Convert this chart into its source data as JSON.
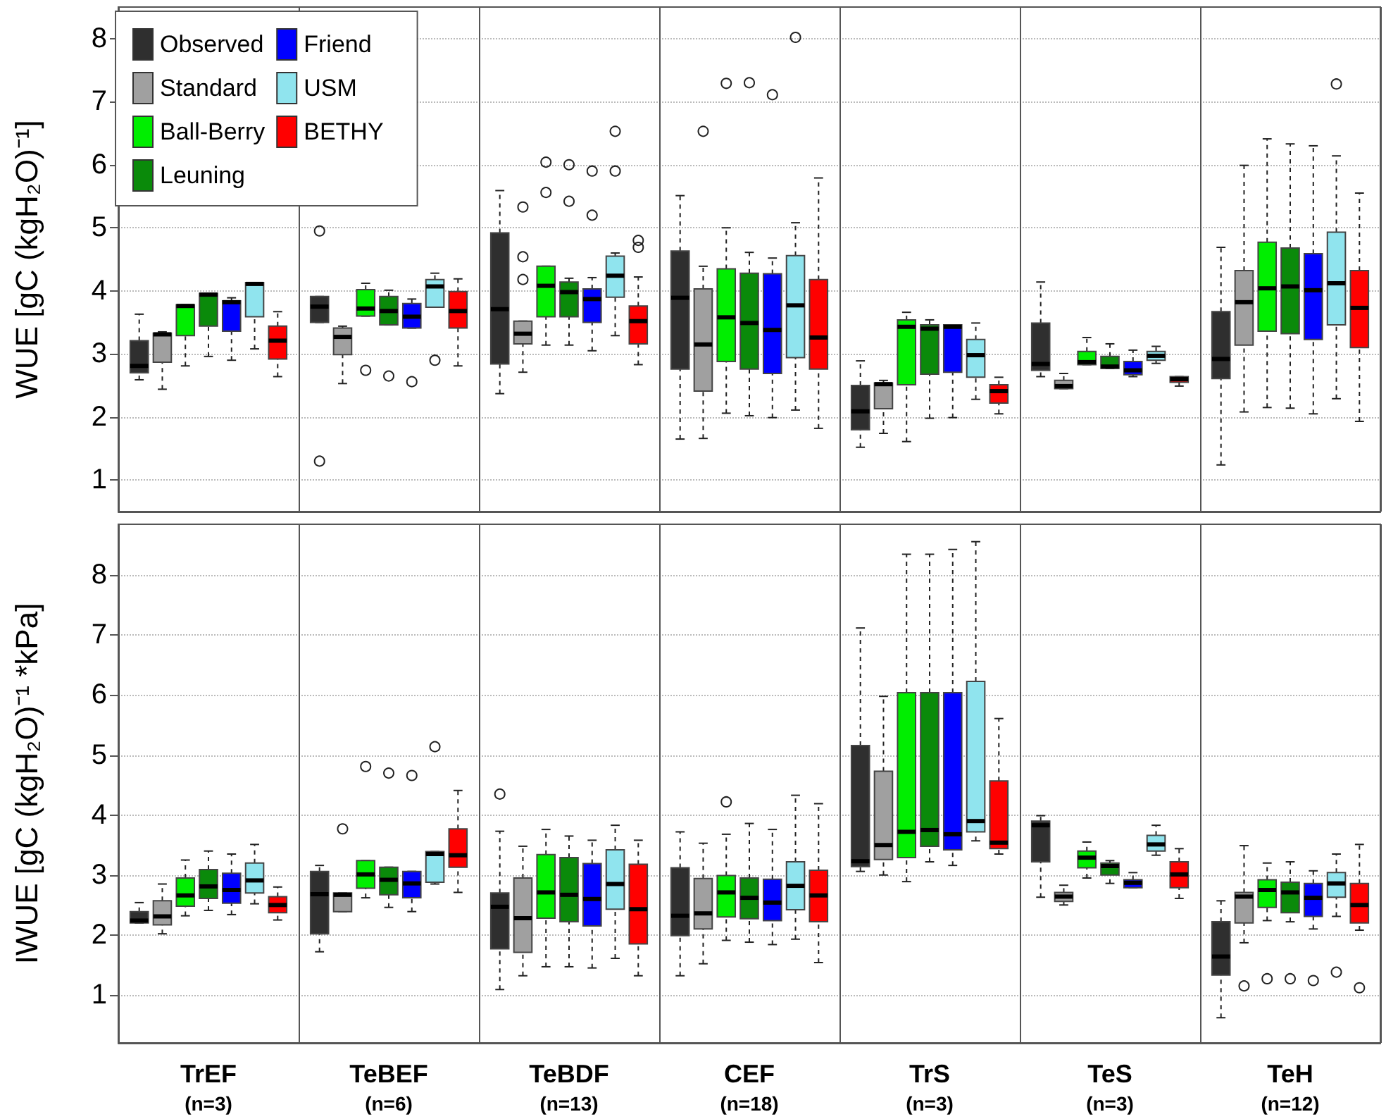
{
  "chart_data": [
    {
      "type": "box",
      "ylabel": "WUE [gC (kgH₂O)⁻¹]",
      "categories": [
        null,
        null,
        null,
        null,
        null,
        null,
        null
      ],
      "ylim": [
        0.5,
        8.5
      ],
      "yticks": [
        1,
        2,
        3,
        4,
        5,
        6,
        7,
        8
      ],
      "grid": "y",
      "legend": "top left",
      "tick_labels": "y",
      "series": [
        {
          "name": "Observed",
          "color": "#2f2f2f",
          "boxes": [
            {
              "low": 2.59,
              "q1": 2.7,
              "median": 2.81,
              "q3": 3.21,
              "high": 3.63
            },
            {
              "low": 3.5,
              "q1": 3.5,
              "median": 3.75,
              "q3": 3.91,
              "high": 3.91,
              "outliers": [
                4.95,
                1.3
              ]
            },
            {
              "low": 2.37,
              "q1": 2.84,
              "median": 3.71,
              "q3": 4.92,
              "high": 5.59
            },
            {
              "low": 1.65,
              "q1": 2.76,
              "median": 3.89,
              "q3": 4.63,
              "high": 5.51
            },
            {
              "low": 1.52,
              "q1": 1.8,
              "median": 2.09,
              "q3": 2.5,
              "high": 2.89
            },
            {
              "low": 2.64,
              "q1": 2.74,
              "median": 2.84,
              "q3": 3.49,
              "high": 4.14
            },
            {
              "low": 1.24,
              "q1": 2.61,
              "median": 2.92,
              "q3": 3.67,
              "high": 4.69
            }
          ]
        },
        {
          "name": "Standard",
          "color": "#a0a0a0",
          "boxes": [
            {
              "low": 2.44,
              "q1": 2.87,
              "median": 3.31,
              "q3": 3.33,
              "high": 3.35
            },
            {
              "low": 2.53,
              "q1": 2.99,
              "median": 3.27,
              "q3": 3.41,
              "high": 3.44
            },
            {
              "low": 2.71,
              "q1": 3.16,
              "median": 3.32,
              "q3": 3.52,
              "high": 3.52,
              "outliers": [
                5.33,
                4.54,
                4.18
              ]
            },
            {
              "low": 1.66,
              "q1": 2.41,
              "median": 3.15,
              "q3": 4.03,
              "high": 4.39,
              "outliers": [
                6.53
              ]
            },
            {
              "low": 1.74,
              "q1": 2.13,
              "median": 2.52,
              "q3": 2.54,
              "high": 2.58
            },
            {
              "low": 2.45,
              "q1": 2.45,
              "median": 2.49,
              "q3": 2.58,
              "high": 2.69
            },
            {
              "low": 2.08,
              "q1": 3.14,
              "median": 3.82,
              "q3": 4.32,
              "high": 5.99
            }
          ]
        },
        {
          "name": "Ball-Berry",
          "color": "#00ee00",
          "boxes": [
            {
              "low": 2.81,
              "q1": 3.29,
              "median": 3.76,
              "q3": 3.78,
              "high": 3.78
            },
            {
              "low": 3.6,
              "q1": 3.6,
              "median": 3.72,
              "q3": 4.02,
              "high": 4.12,
              "outliers": [
                2.74
              ]
            },
            {
              "low": 3.14,
              "q1": 3.59,
              "median": 4.08,
              "q3": 4.39,
              "high": 4.39,
              "outliers": [
                6.04,
                5.56
              ]
            },
            {
              "low": 2.06,
              "q1": 2.88,
              "median": 3.58,
              "q3": 4.35,
              "high": 5.0,
              "outliers": [
                7.29
              ]
            },
            {
              "low": 1.61,
              "q1": 2.51,
              "median": 3.43,
              "q3": 3.54,
              "high": 3.66
            },
            {
              "low": 2.83,
              "q1": 2.83,
              "median": 2.87,
              "q3": 3.04,
              "high": 3.26
            },
            {
              "low": 2.15,
              "q1": 3.36,
              "median": 4.04,
              "q3": 4.77,
              "high": 6.41
            }
          ]
        },
        {
          "name": "Leuning",
          "color": "#0a8a0a",
          "boxes": [
            {
              "low": 2.96,
              "q1": 3.44,
              "median": 3.94,
              "q3": 3.96,
              "high": 3.96
            },
            {
              "low": 3.46,
              "q1": 3.46,
              "median": 3.68,
              "q3": 3.91,
              "high": 4.01,
              "outliers": [
                2.65
              ]
            },
            {
              "low": 3.14,
              "q1": 3.59,
              "median": 3.98,
              "q3": 4.14,
              "high": 4.2,
              "outliers": [
                6.0,
                5.42
              ]
            },
            {
              "low": 2.02,
              "q1": 2.76,
              "median": 3.49,
              "q3": 4.28,
              "high": 4.61,
              "outliers": [
                7.3
              ]
            },
            {
              "low": 1.98,
              "q1": 2.68,
              "median": 3.4,
              "q3": 3.46,
              "high": 3.54
            },
            {
              "low": 2.77,
              "q1": 2.77,
              "median": 2.8,
              "q3": 2.96,
              "high": 3.16
            },
            {
              "low": 2.14,
              "q1": 3.32,
              "median": 4.07,
              "q3": 4.68,
              "high": 6.33
            }
          ]
        },
        {
          "name": "Friend",
          "color": "#0000ff",
          "boxes": [
            {
              "low": 2.9,
              "q1": 3.36,
              "median": 3.82,
              "q3": 3.84,
              "high": 3.89
            },
            {
              "low": 3.41,
              "q1": 3.41,
              "median": 3.59,
              "q3": 3.8,
              "high": 3.87,
              "outliers": [
                2.56
              ]
            },
            {
              "low": 3.05,
              "q1": 3.5,
              "median": 3.87,
              "q3": 4.03,
              "high": 4.21,
              "outliers": [
                5.9,
                5.2
              ]
            },
            {
              "low": 1.99,
              "q1": 2.69,
              "median": 3.38,
              "q3": 4.27,
              "high": 4.52,
              "outliers": [
                7.11
              ]
            },
            {
              "low": 1.99,
              "q1": 2.71,
              "median": 3.43,
              "q3": 3.46,
              "high": 3.46
            },
            {
              "low": 2.64,
              "q1": 2.67,
              "median": 2.74,
              "q3": 2.88,
              "high": 3.06
            },
            {
              "low": 2.05,
              "q1": 3.23,
              "median": 4.01,
              "q3": 4.59,
              "high": 6.3
            }
          ]
        },
        {
          "name": "USM",
          "color": "#90e4ee",
          "boxes": [
            {
              "low": 3.08,
              "q1": 3.59,
              "median": 4.11,
              "q3": 4.13,
              "high": 4.13
            },
            {
              "low": 3.74,
              "q1": 3.74,
              "median": 4.07,
              "q3": 4.18,
              "high": 4.28,
              "outliers": [
                2.9
              ]
            },
            {
              "low": 3.29,
              "q1": 3.9,
              "median": 4.24,
              "q3": 4.55,
              "high": 4.6,
              "outliers": [
                6.53,
                5.9
              ]
            },
            {
              "low": 2.11,
              "q1": 2.94,
              "median": 3.77,
              "q3": 4.56,
              "high": 5.08,
              "outliers": [
                8.02
              ]
            },
            {
              "low": 2.28,
              "q1": 2.63,
              "median": 2.98,
              "q3": 3.23,
              "high": 3.49
            },
            {
              "low": 2.85,
              "q1": 2.9,
              "median": 2.97,
              "q3": 3.04,
              "high": 3.12
            },
            {
              "low": 2.29,
              "q1": 3.46,
              "median": 4.12,
              "q3": 4.93,
              "high": 6.14,
              "outliers": [
                7.28
              ]
            }
          ]
        },
        {
          "name": "BETHY",
          "color": "#ff0000",
          "boxes": [
            {
              "low": 2.64,
              "q1": 2.92,
              "median": 3.21,
              "q3": 3.44,
              "high": 3.67
            },
            {
              "low": 2.81,
              "q1": 3.41,
              "median": 3.68,
              "q3": 3.99,
              "high": 4.19
            },
            {
              "low": 2.83,
              "q1": 3.16,
              "median": 3.52,
              "q3": 3.76,
              "high": 4.22,
              "outliers": [
                4.8,
                4.69
              ]
            },
            {
              "low": 1.82,
              "q1": 2.76,
              "median": 3.26,
              "q3": 4.18,
              "high": 5.79
            },
            {
              "low": 2.05,
              "q1": 2.22,
              "median": 2.41,
              "q3": 2.51,
              "high": 2.63
            },
            {
              "low": 2.49,
              "q1": 2.55,
              "median": 2.6,
              "q3": 2.64,
              "high": 2.64
            },
            {
              "low": 1.93,
              "q1": 3.1,
              "median": 3.73,
              "q3": 4.32,
              "high": 5.55
            }
          ]
        }
      ]
    },
    {
      "type": "box",
      "ylabel": "IWUE [gC (kgH₂O)⁻¹ *kPa]",
      "categories": [
        "TrEF\n(n=3)",
        "TeBEF\n(n=6)",
        "TeBDF\n(n=13)",
        "CEF\n(n=18)",
        "TrS\n(n=3)",
        "TeS\n(n=3)",
        "TeH\n(n=12)"
      ],
      "ylim": [
        0.2,
        8.85
      ],
      "yticks": [
        1,
        2,
        3,
        4,
        5,
        6,
        7,
        8
      ],
      "grid": "y",
      "series": [
        {
          "color": "#2f2f2f",
          "boxes": [
            {
              "low": 2.2,
              "q1": 2.2,
              "median": 2.24,
              "q3": 2.39,
              "high": 2.54
            },
            {
              "low": 1.72,
              "q1": 2.02,
              "median": 2.68,
              "q3": 3.06,
              "high": 3.16
            },
            {
              "low": 1.09,
              "q1": 1.77,
              "median": 2.47,
              "q3": 2.7,
              "high": 3.73,
              "outliers": [
                4.35
              ]
            },
            {
              "low": 1.32,
              "q1": 1.99,
              "median": 2.32,
              "q3": 3.12,
              "high": 3.72
            },
            {
              "low": 3.06,
              "q1": 3.14,
              "median": 3.23,
              "q3": 5.16,
              "high": 7.12
            },
            {
              "low": 2.63,
              "q1": 3.22,
              "median": 3.83,
              "q3": 3.9,
              "high": 3.99
            },
            {
              "low": 0.62,
              "q1": 1.33,
              "median": 1.64,
              "q3": 2.22,
              "high": 2.57
            }
          ]
        },
        {
          "color": "#a0a0a0",
          "boxes": [
            {
              "low": 2.02,
              "q1": 2.17,
              "median": 2.31,
              "q3": 2.57,
              "high": 2.85
            },
            {
              "low": 2.39,
              "q1": 2.39,
              "median": 2.67,
              "q3": 2.7,
              "high": 2.7,
              "outliers": [
                3.77
              ]
            },
            {
              "low": 1.32,
              "q1": 1.71,
              "median": 2.28,
              "q3": 2.95,
              "high": 3.48
            },
            {
              "low": 1.52,
              "q1": 2.1,
              "median": 2.36,
              "q3": 2.94,
              "high": 3.53
            },
            {
              "low": 3.0,
              "q1": 3.26,
              "median": 3.5,
              "q3": 4.73,
              "high": 5.98
            },
            {
              "low": 2.5,
              "q1": 2.56,
              "median": 2.64,
              "q3": 2.71,
              "high": 2.83
            },
            {
              "low": 1.87,
              "q1": 2.2,
              "median": 2.64,
              "q3": 2.71,
              "high": 3.49,
              "outliers": [
                1.15
              ]
            }
          ]
        },
        {
          "color": "#00ee00",
          "boxes": [
            {
              "low": 2.32,
              "q1": 2.48,
              "median": 2.66,
              "q3": 2.95,
              "high": 3.25
            },
            {
              "low": 2.62,
              "q1": 2.78,
              "median": 3.01,
              "q3": 3.24,
              "high": 3.24,
              "outliers": [
                4.81
              ]
            },
            {
              "low": 1.47,
              "q1": 2.28,
              "median": 2.71,
              "q3": 3.34,
              "high": 3.76
            },
            {
              "low": 1.91,
              "q1": 2.3,
              "median": 2.71,
              "q3": 2.99,
              "high": 3.68,
              "outliers": [
                4.22
              ]
            },
            {
              "low": 2.89,
              "q1": 3.29,
              "median": 3.72,
              "q3": 6.04,
              "high": 8.35
            },
            {
              "low": 2.95,
              "q1": 3.12,
              "median": 3.29,
              "q3": 3.4,
              "high": 3.55
            },
            {
              "low": 2.24,
              "q1": 2.46,
              "median": 2.75,
              "q3": 2.92,
              "high": 3.2,
              "outliers": [
                1.27
              ]
            }
          ]
        },
        {
          "color": "#0a8a0a",
          "boxes": [
            {
              "low": 2.41,
              "q1": 2.61,
              "median": 2.81,
              "q3": 3.09,
              "high": 3.4
            },
            {
              "low": 2.46,
              "q1": 2.67,
              "median": 2.92,
              "q3": 3.13,
              "high": 3.13,
              "outliers": [
                4.7
              ]
            },
            {
              "low": 1.47,
              "q1": 2.22,
              "median": 2.67,
              "q3": 3.29,
              "high": 3.65
            },
            {
              "low": 1.88,
              "q1": 2.27,
              "median": 2.62,
              "q3": 2.95,
              "high": 3.86
            },
            {
              "low": 3.22,
              "q1": 3.48,
              "median": 3.75,
              "q3": 6.04,
              "high": 8.35
            },
            {
              "low": 2.86,
              "q1": 3.0,
              "median": 3.15,
              "q3": 3.2,
              "high": 3.24
            },
            {
              "low": 2.22,
              "q1": 2.37,
              "median": 2.71,
              "q3": 2.88,
              "high": 3.22,
              "outliers": [
                1.27
              ]
            }
          ]
        },
        {
          "color": "#0000ff",
          "boxes": [
            {
              "low": 2.34,
              "q1": 2.53,
              "median": 2.75,
              "q3": 3.03,
              "high": 3.35
            },
            {
              "low": 2.39,
              "q1": 2.62,
              "median": 2.86,
              "q3": 3.06,
              "high": 3.06,
              "outliers": [
                4.66
              ]
            },
            {
              "low": 1.45,
              "q1": 2.15,
              "median": 2.6,
              "q3": 3.19,
              "high": 3.58
            },
            {
              "low": 1.84,
              "q1": 2.24,
              "median": 2.54,
              "q3": 2.93,
              "high": 3.76
            },
            {
              "low": 3.16,
              "q1": 3.42,
              "median": 3.68,
              "q3": 6.04,
              "high": 8.43
            },
            {
              "low": 2.79,
              "q1": 2.79,
              "median": 2.87,
              "q3": 2.92,
              "high": 3.04
            },
            {
              "low": 2.1,
              "q1": 2.31,
              "median": 2.62,
              "q3": 2.86,
              "high": 3.07,
              "outliers": [
                1.24
              ]
            }
          ]
        },
        {
          "color": "#90e4ee",
          "boxes": [
            {
              "low": 2.52,
              "q1": 2.7,
              "median": 2.91,
              "q3": 3.2,
              "high": 3.51
            },
            {
              "low": 2.85,
              "q1": 2.88,
              "median": 3.35,
              "q3": 3.39,
              "high": 3.39,
              "outliers": [
                5.14
              ]
            },
            {
              "low": 1.61,
              "q1": 2.43,
              "median": 2.85,
              "q3": 3.42,
              "high": 3.83
            },
            {
              "low": 1.93,
              "q1": 2.42,
              "median": 2.82,
              "q3": 3.22,
              "high": 4.33
            },
            {
              "low": 3.57,
              "q1": 3.72,
              "median": 3.9,
              "q3": 6.23,
              "high": 8.56
            },
            {
              "low": 3.33,
              "q1": 3.4,
              "median": 3.51,
              "q3": 3.66,
              "high": 3.83
            },
            {
              "low": 2.31,
              "q1": 2.63,
              "median": 2.86,
              "q3": 3.04,
              "high": 3.35,
              "outliers": [
                1.38
              ]
            }
          ]
        },
        {
          "color": "#ff0000",
          "boxes": [
            {
              "low": 2.25,
              "q1": 2.37,
              "median": 2.5,
              "q3": 2.64,
              "high": 2.8
            },
            {
              "low": 2.71,
              "q1": 3.13,
              "median": 3.33,
              "q3": 3.77,
              "high": 4.41
            },
            {
              "low": 1.32,
              "q1": 1.85,
              "median": 2.43,
              "q3": 3.18,
              "high": 3.58
            },
            {
              "low": 1.54,
              "q1": 2.22,
              "median": 2.66,
              "q3": 3.08,
              "high": 4.19
            },
            {
              "low": 3.35,
              "q1": 3.44,
              "median": 3.54,
              "q3": 4.57,
              "high": 5.61
            },
            {
              "low": 2.61,
              "q1": 2.79,
              "median": 3.01,
              "q3": 3.22,
              "high": 3.44
            },
            {
              "low": 2.08,
              "q1": 2.2,
              "median": 2.5,
              "q3": 2.86,
              "high": 3.51,
              "outliers": [
                1.12
              ]
            }
          ]
        }
      ]
    }
  ]
}
